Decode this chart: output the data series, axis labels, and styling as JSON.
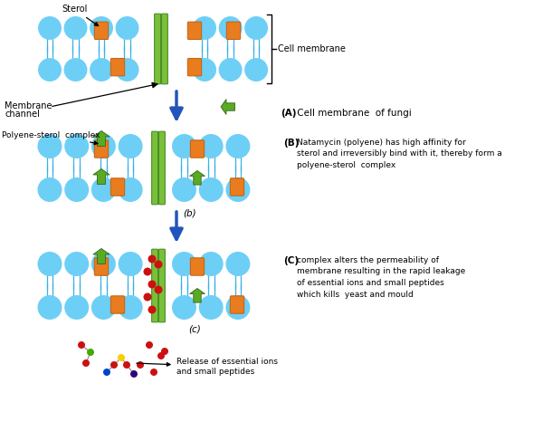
{
  "bg_color": "#ffffff",
  "head_color": "#6dcff6",
  "tail_color": "#3ab0e8",
  "sterol_color": "#e87c1e",
  "channel_color_dark": "#4a8f28",
  "channel_color_light": "#7abf3a",
  "polyene_color": "#5aaa22",
  "red_dot_color": "#cc1111",
  "arrow_blue": "#2255bb",
  "arrow_green": "#44aa22",
  "label_A_bold": "(A)",
  "label_A_text": " Cell membrane  of fungi",
  "label_B_bold": "(B)",
  "label_B_text": " Natamycin (polyene) has high affinity for\n sterol and irreversibly bind with it, thereby form a\n polyene-sterol complex",
  "label_C_bold": "(C)",
  "label_C_text": " complex alters the permeability of\n membrane resulting in the rapid leakage\n of essential ions and small peptides\n which kills  yeast and mould",
  "label_b": "(b)",
  "label_c": "(c)",
  "sterol_label": "Sterol",
  "membrane_channel_label1": "Membrane",
  "membrane_channel_label2": "channel",
  "polyene_sterol_label": "Polyene-sterol  complex",
  "release_label": "Release of essential ions\nand small peptides",
  "cell_membrane_label": "Cell membrane"
}
